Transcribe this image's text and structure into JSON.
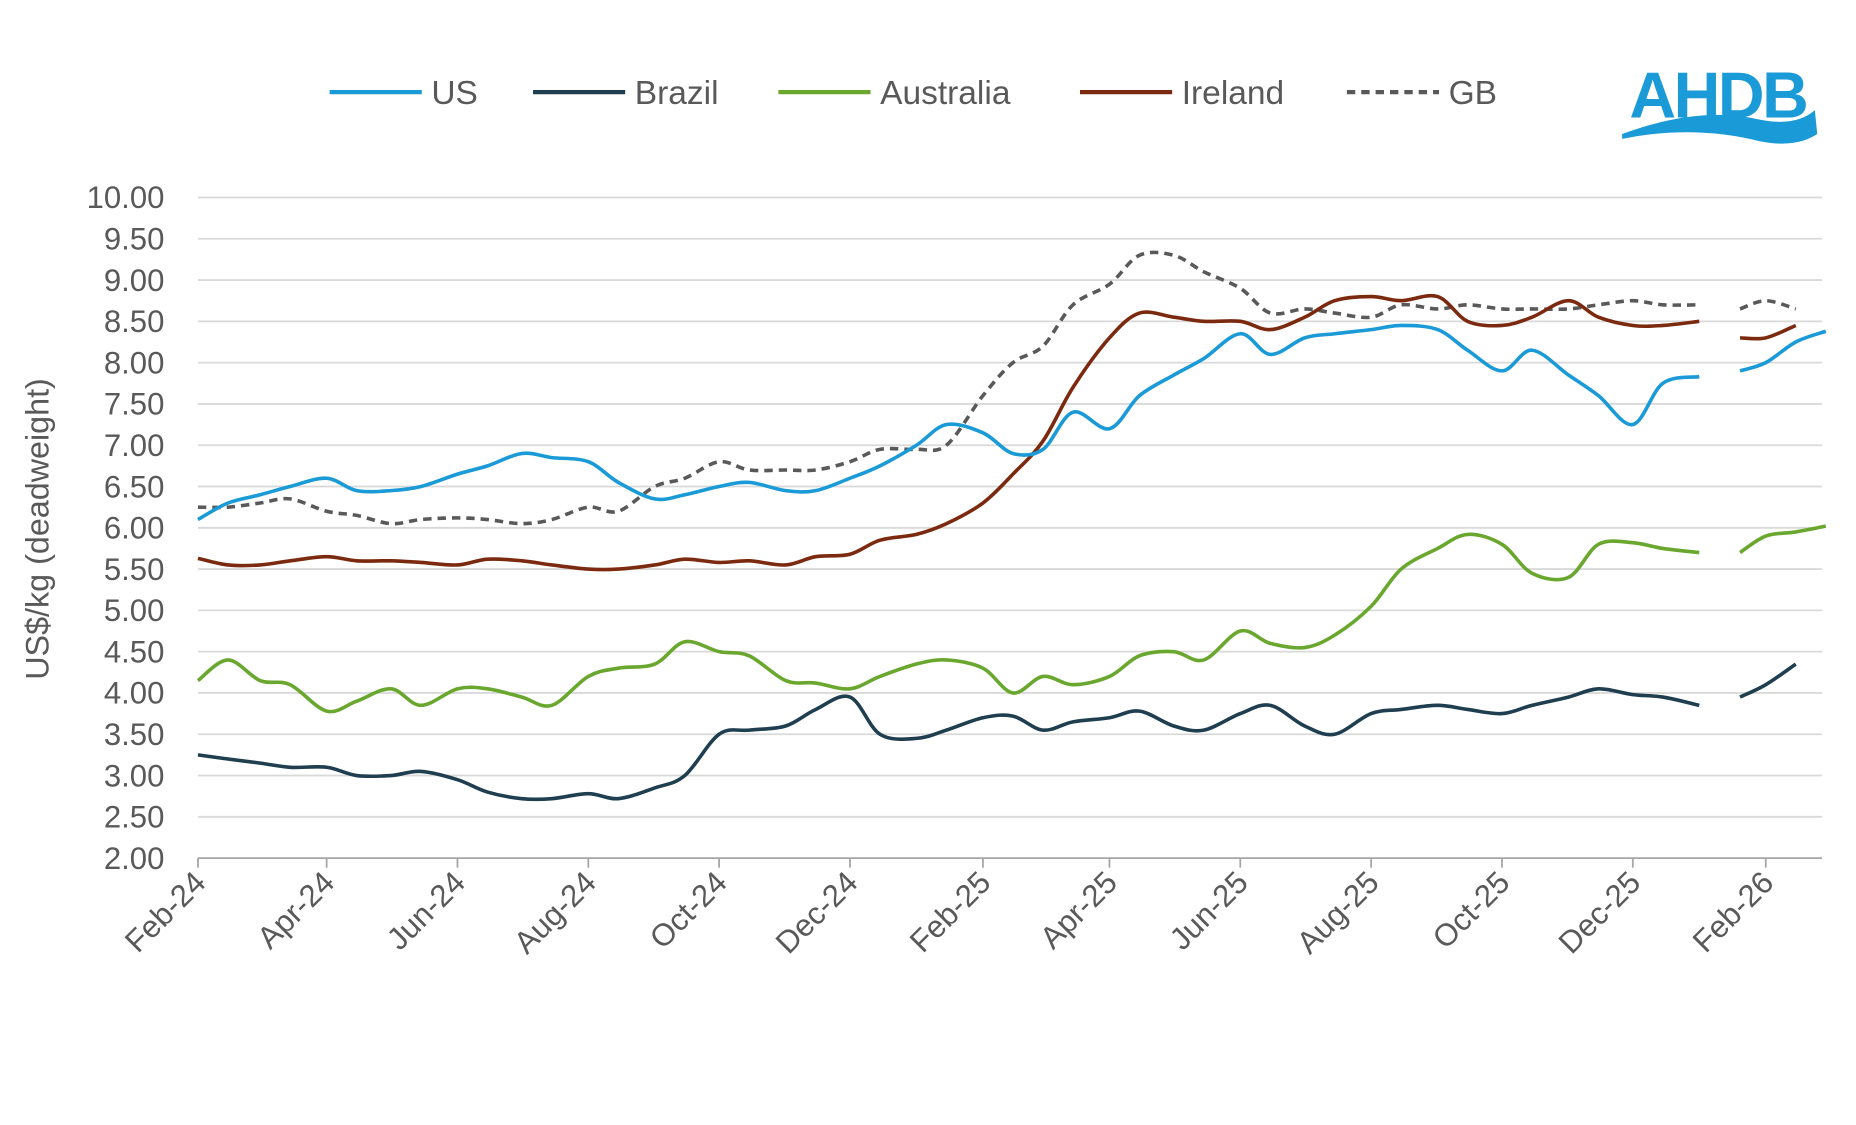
{
  "logo": {
    "text": "AHDB",
    "color": "#1a9ad6"
  },
  "chart_data": {
    "type": "line",
    "title": "",
    "xlabel": "",
    "ylabel": "US$/kg (deadweight)",
    "ylim": [
      2.0,
      10.0
    ],
    "y_ticks": [
      "10.00",
      "9.50",
      "9.00",
      "8.50",
      "8.00",
      "7.50",
      "7.00",
      "6.50",
      "6.00",
      "5.50",
      "5.00",
      "4.50",
      "4.00",
      "3.50",
      "3.00",
      "2.50",
      "2.00"
    ],
    "x_ticks": [
      "Feb-24",
      "Apr-24",
      "Jun-24",
      "Aug-24",
      "Oct-24",
      "Dec-24",
      "Feb-25",
      "Apr-25",
      "Jun-25",
      "Aug-25",
      "Oct-25",
      "Dec-25",
      "Feb-26"
    ],
    "x_tick_dates": [
      "2024-02-01",
      "2024-04-01",
      "2024-06-01",
      "2024-08-01",
      "2024-10-01",
      "2024-12-01",
      "2025-02-01",
      "2025-04-01",
      "2025-06-01",
      "2025-08-01",
      "2025-10-01",
      "2025-12-01",
      "2026-02-01"
    ],
    "grid": true,
    "legend_position": "top",
    "x": [
      "2024-02-01",
      "2024-02-15",
      "2024-03-01",
      "2024-03-15",
      "2024-04-01",
      "2024-04-15",
      "2024-05-01",
      "2024-05-15",
      "2024-06-01",
      "2024-06-15",
      "2024-07-01",
      "2024-07-15",
      "2024-08-01",
      "2024-08-15",
      "2024-09-01",
      "2024-09-15",
      "2024-10-01",
      "2024-10-15",
      "2024-11-01",
      "2024-11-15",
      "2024-12-01",
      "2024-12-15",
      "2025-01-01",
      "2025-01-15",
      "2025-02-01",
      "2025-02-15",
      "2025-03-01",
      "2025-03-15",
      "2025-04-01",
      "2025-04-15",
      "2025-05-01",
      "2025-05-15",
      "2025-06-01",
      "2025-06-15",
      "2025-07-01",
      "2025-07-15",
      "2025-08-01",
      "2025-08-15",
      "2025-09-01",
      "2025-09-15",
      "2025-10-01",
      "2025-10-15",
      "2025-11-01",
      "2025-11-15",
      "2025-12-01",
      "2025-12-15",
      "2026-01-01",
      "2026-01-10",
      "2026-01-20",
      "2026-02-01",
      "2026-02-15",
      "2026-03-01"
    ],
    "series": [
      {
        "name": "US",
        "color": "#1a9ad6",
        "dash": false,
        "values": [
          6.1,
          6.3,
          6.4,
          6.5,
          6.6,
          6.45,
          6.45,
          6.5,
          6.65,
          6.75,
          6.9,
          6.85,
          6.8,
          6.55,
          6.35,
          6.4,
          6.5,
          6.55,
          6.45,
          6.45,
          6.6,
          6.75,
          7.0,
          7.25,
          7.15,
          6.9,
          6.95,
          7.4,
          7.2,
          7.6,
          7.85,
          8.05,
          8.35,
          8.1,
          8.3,
          8.35,
          8.4,
          8.45,
          8.4,
          8.15,
          7.9,
          8.15,
          7.85,
          7.6,
          7.25,
          7.75,
          7.83,
          null,
          7.9,
          8.0,
          8.25,
          8.38
        ]
      },
      {
        "name": "Brazil",
        "color": "#1f3e4f",
        "dash": false,
        "values": [
          3.25,
          3.2,
          3.15,
          3.1,
          3.1,
          3.0,
          3.0,
          3.05,
          2.95,
          2.8,
          2.72,
          2.72,
          2.78,
          2.72,
          2.85,
          3.0,
          3.5,
          3.55,
          3.6,
          3.8,
          3.95,
          3.5,
          3.45,
          3.55,
          3.7,
          3.72,
          3.55,
          3.65,
          3.7,
          3.78,
          3.6,
          3.55,
          3.75,
          3.85,
          3.6,
          3.5,
          3.75,
          3.8,
          3.85,
          3.8,
          3.75,
          3.85,
          3.95,
          4.05,
          3.98,
          3.95,
          3.85,
          null,
          3.95,
          4.1,
          4.35,
          null
        ]
      },
      {
        "name": "Australia",
        "color": "#6aa72e",
        "dash": false,
        "values": [
          4.15,
          4.4,
          4.15,
          4.1,
          3.78,
          3.9,
          4.05,
          3.85,
          4.05,
          4.05,
          3.95,
          3.85,
          4.2,
          4.3,
          4.35,
          4.62,
          4.5,
          4.45,
          4.15,
          4.12,
          4.05,
          4.2,
          4.35,
          4.4,
          4.3,
          4.0,
          4.2,
          4.1,
          4.2,
          4.45,
          4.5,
          4.4,
          4.75,
          4.6,
          4.55,
          4.7,
          5.05,
          5.5,
          5.75,
          5.92,
          5.8,
          5.45,
          5.4,
          5.8,
          5.82,
          5.75,
          5.7,
          null,
          5.7,
          5.9,
          5.95,
          6.02
        ]
      },
      {
        "name": "Ireland",
        "color": "#7b2a0f",
        "dash": false,
        "values": [
          5.63,
          5.55,
          5.55,
          5.6,
          5.65,
          5.6,
          5.6,
          5.58,
          5.55,
          5.62,
          5.6,
          5.55,
          5.5,
          5.5,
          5.55,
          5.62,
          5.58,
          5.6,
          5.55,
          5.65,
          5.68,
          5.85,
          5.92,
          6.05,
          6.3,
          6.65,
          7.05,
          7.7,
          8.3,
          8.6,
          8.55,
          8.5,
          8.5,
          8.4,
          8.55,
          8.75,
          8.8,
          8.75,
          8.8,
          8.5,
          8.45,
          8.55,
          8.75,
          8.55,
          8.45,
          8.45,
          8.5,
          null,
          8.3,
          8.3,
          8.45,
          null
        ]
      },
      {
        "name": "GB",
        "color": "#595959",
        "dash": true,
        "values": [
          6.25,
          6.25,
          6.3,
          6.35,
          6.2,
          6.15,
          6.05,
          6.1,
          6.12,
          6.1,
          6.05,
          6.1,
          6.25,
          6.2,
          6.5,
          6.6,
          6.8,
          6.7,
          6.7,
          6.7,
          6.8,
          6.95,
          6.95,
          7.0,
          7.6,
          8.0,
          8.2,
          8.7,
          8.95,
          9.3,
          9.3,
          9.1,
          8.9,
          8.6,
          8.65,
          8.6,
          8.55,
          8.7,
          8.65,
          8.7,
          8.65,
          8.65,
          8.65,
          8.7,
          8.75,
          8.7,
          8.7,
          null,
          8.65,
          8.75,
          8.65,
          null
        ]
      }
    ]
  }
}
